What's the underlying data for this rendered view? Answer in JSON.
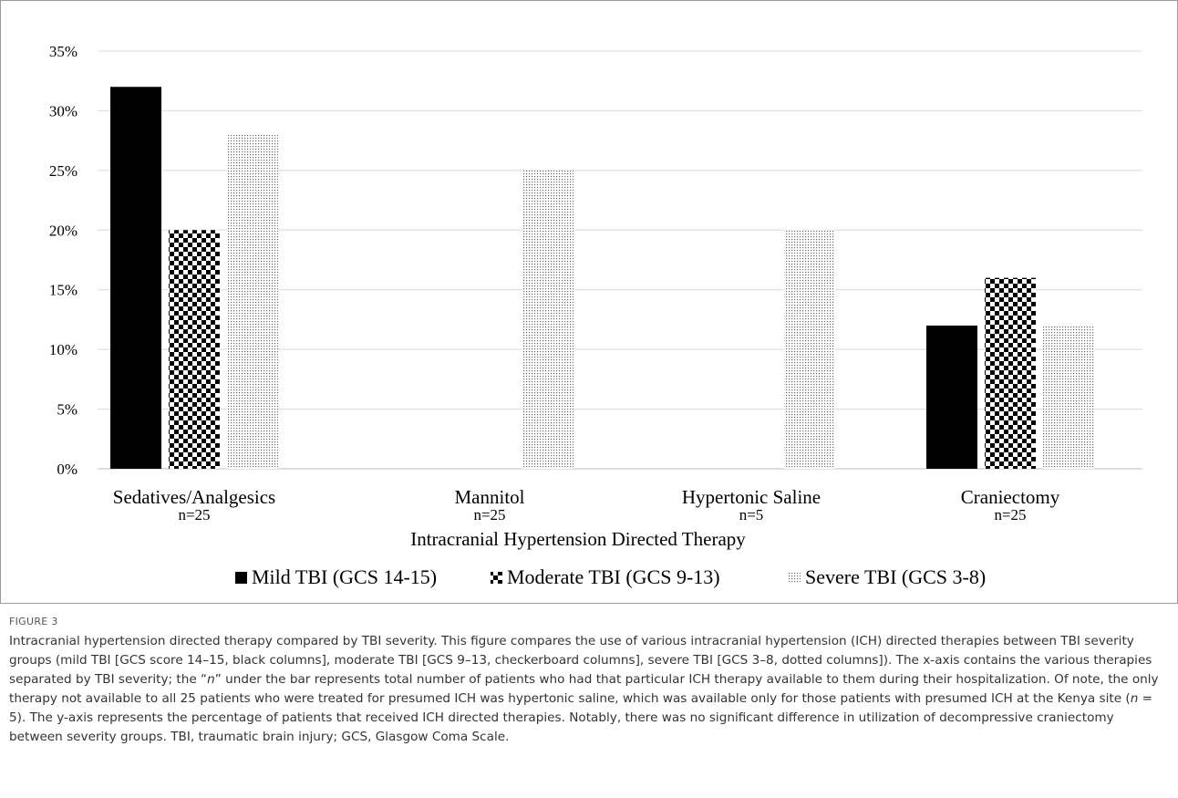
{
  "chart_data": {
    "type": "bar",
    "categories": [
      "Sedatives/Analgesics",
      "Mannitol",
      "Hypertonic Saline",
      "Craniectomy"
    ],
    "category_n": [
      "n=25",
      "n=25",
      "n=5",
      "n=25"
    ],
    "series": [
      {
        "name": "Mild TBI (GCS 14-15)",
        "values": [
          32,
          0,
          0,
          12
        ],
        "pattern": "solid",
        "color": "#000000"
      },
      {
        "name": "Moderate TBI (GCS 9-13)",
        "values": [
          20,
          0,
          0,
          16
        ],
        "pattern": "checkerboard",
        "color": "#000000"
      },
      {
        "name": "Severe TBI (GCS 3-8)",
        "values": [
          28,
          25,
          20,
          12
        ],
        "pattern": "dotted",
        "color": "#000000"
      }
    ],
    "y_ticks": [
      "0%",
      "5%",
      "10%",
      "15%",
      "20%",
      "25%",
      "30%",
      "35%"
    ],
    "ylim": [
      0,
      35
    ],
    "xlabel": "Intracranial Hypertension Directed Therapy",
    "ylabel": "",
    "title": "",
    "grid": true,
    "legend_position": "bottom"
  },
  "figure": {
    "label": "FIGURE 3",
    "caption_parts": [
      "Intracranial hypertension directed therapy compared by TBI severity. This figure compares the use of various intracranial hypertension (ICH) directed therapies between TBI severity groups (mild TBI [GCS score 14–15, black columns], moderate TBI [GCS 9–13, checkerboard columns], severe TBI [GCS 3–8, dotted columns]). The x-axis contains the various therapies separated by TBI severity; the “",
      "n",
      "” under the bar represents total number of patients who had that particular ICH therapy available to them during their hospitalization. Of note, the only therapy not available to all 25 patients who were treated for presumed ICH was hypertonic saline, which was available only for those patients with presumed ICH at the Kenya site (",
      "n",
      " = 5). The y-axis represents the percentage of patients that received ICH directed therapies. Notably, there was no significant difference in utilization of decompressive craniectomy between severity groups. TBI, traumatic brain injury; GCS, Glasgow Coma Scale."
    ]
  }
}
